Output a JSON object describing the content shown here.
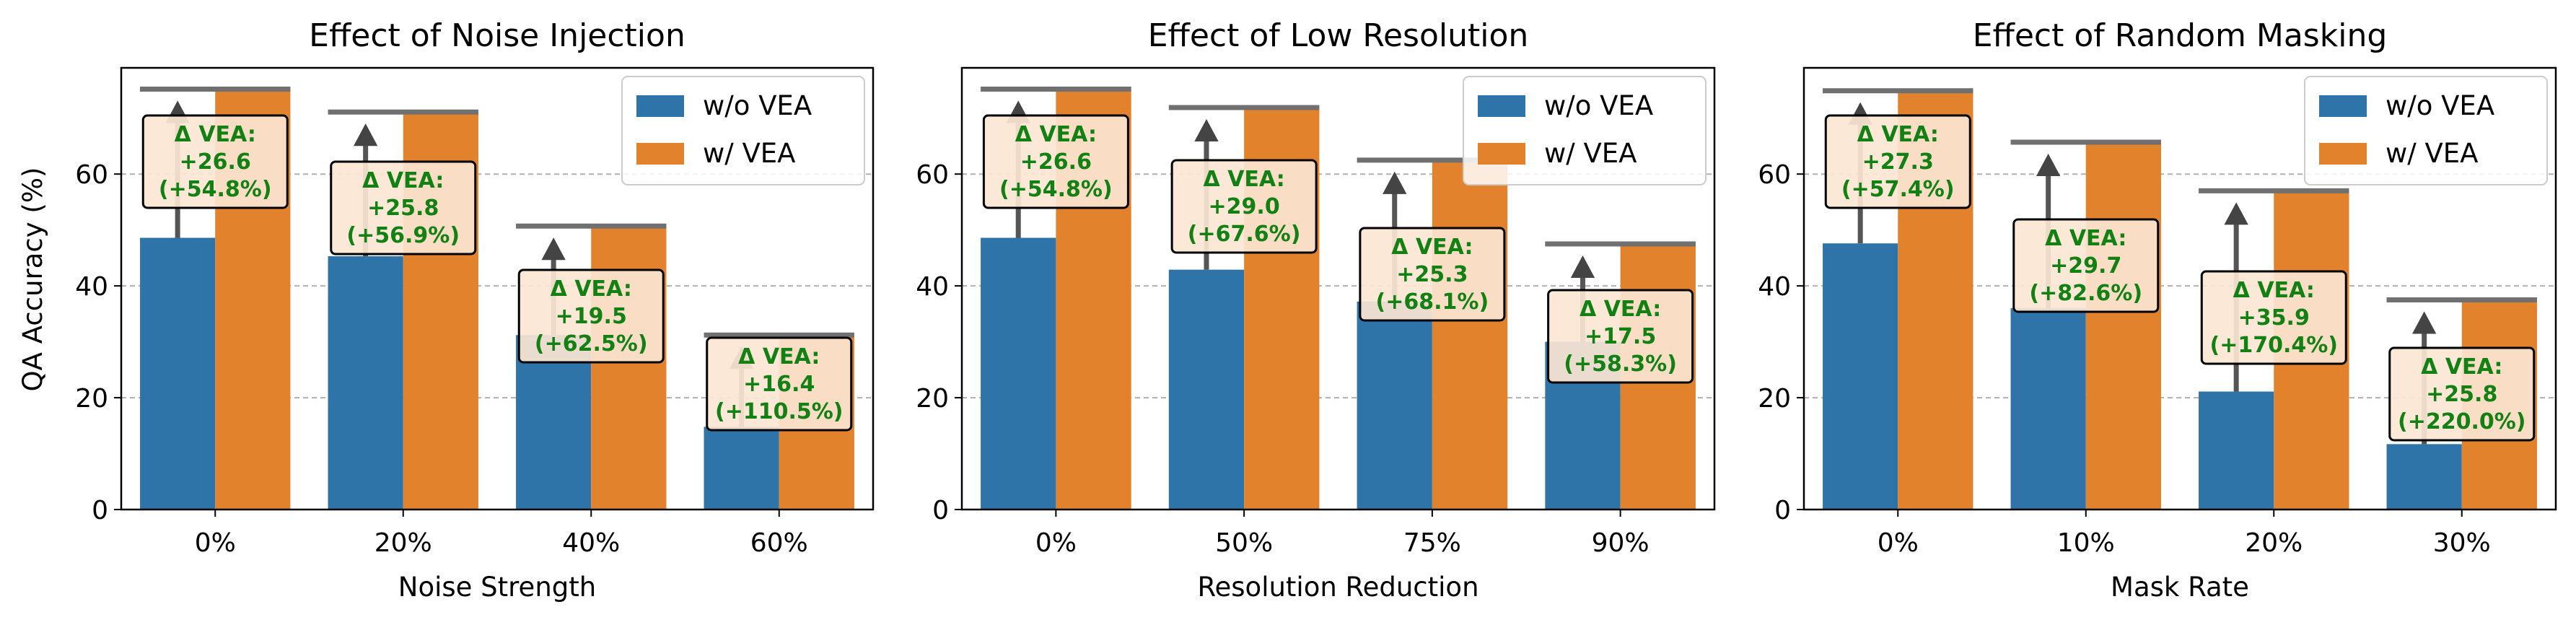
{
  "figure": {
    "shared_ylabel": "QA Accuracy (%)",
    "colors": {
      "without": "#2f74a8",
      "with": "#e2822d",
      "annotation_text": "#128012",
      "annotation_fill": "#fbe6d3",
      "arrow": "#555555",
      "cap_line": "#707070",
      "grid": "#b0b0b0"
    }
  },
  "chart_data": [
    {
      "type": "bar",
      "title": "Effect of Noise Injection",
      "xlabel": "Noise Strength",
      "ylabel": "QA Accuracy (%)",
      "categories": [
        "0%",
        "20%",
        "40%",
        "60%"
      ],
      "ylim": [
        0,
        79
      ],
      "yticks": [
        "0",
        "20",
        "40",
        "60"
      ],
      "grid": "horizontal dashed",
      "legend_position": "top-right",
      "series": [
        {
          "name": "w/o VEA",
          "values": [
            48.6,
            45.3,
            31.2,
            14.8
          ]
        },
        {
          "name": "w/ VEA",
          "values": [
            75.2,
            71.1,
            50.7,
            31.2
          ]
        }
      ],
      "annotations": [
        {
          "line1": "Δ VEA:",
          "line2": "+26.6",
          "line3": "(+54.8%)"
        },
        {
          "line1": "Δ VEA:",
          "line2": "+25.8",
          "line3": "(+56.9%)"
        },
        {
          "line1": "Δ VEA:",
          "line2": "+19.5",
          "line3": "(+62.5%)"
        },
        {
          "line1": "Δ VEA:",
          "line2": "+16.4",
          "line3": "(+110.5%)"
        }
      ]
    },
    {
      "type": "bar",
      "title": "Effect of Low Resolution",
      "xlabel": "Resolution Reduction",
      "ylabel": "",
      "categories": [
        "0%",
        "50%",
        "75%",
        "90%"
      ],
      "ylim": [
        0,
        79
      ],
      "yticks": [
        "0",
        "20",
        "40",
        "60"
      ],
      "grid": "horizontal dashed",
      "legend_position": "top-right",
      "series": [
        {
          "name": "w/o VEA",
          "values": [
            48.6,
            42.9,
            37.2,
            30.0
          ]
        },
        {
          "name": "w/ VEA",
          "values": [
            75.2,
            71.9,
            62.5,
            47.5
          ]
        }
      ],
      "annotations": [
        {
          "line1": "Δ VEA:",
          "line2": "+26.6",
          "line3": "(+54.8%)"
        },
        {
          "line1": "Δ VEA:",
          "line2": "+29.0",
          "line3": "(+67.6%)"
        },
        {
          "line1": "Δ VEA:",
          "line2": "+25.3",
          "line3": "(+68.1%)"
        },
        {
          "line1": "Δ VEA:",
          "line2": "+17.5",
          "line3": "(+58.3%)"
        }
      ]
    },
    {
      "type": "bar",
      "title": "Effect of Random Masking",
      "xlabel": "Mask Rate",
      "ylabel": "",
      "categories": [
        "0%",
        "10%",
        "20%",
        "30%"
      ],
      "ylim": [
        0,
        79
      ],
      "yticks": [
        "0",
        "20",
        "40",
        "60"
      ],
      "grid": "horizontal dashed",
      "legend_position": "top-right",
      "series": [
        {
          "name": "w/o VEA",
          "values": [
            47.6,
            36.0,
            21.1,
            11.7
          ]
        },
        {
          "name": "w/ VEA",
          "values": [
            74.9,
            65.7,
            57.0,
            37.5
          ]
        }
      ],
      "annotations": [
        {
          "line1": "Δ VEA:",
          "line2": "+27.3",
          "line3": "(+57.4%)"
        },
        {
          "line1": "Δ VEA:",
          "line2": "+29.7",
          "line3": "(+82.6%)"
        },
        {
          "line1": "Δ VEA:",
          "line2": "+35.9",
          "line3": "(+170.4%)"
        },
        {
          "line1": "Δ VEA:",
          "line2": "+25.8",
          "line3": "(+220.0%)"
        }
      ]
    }
  ]
}
